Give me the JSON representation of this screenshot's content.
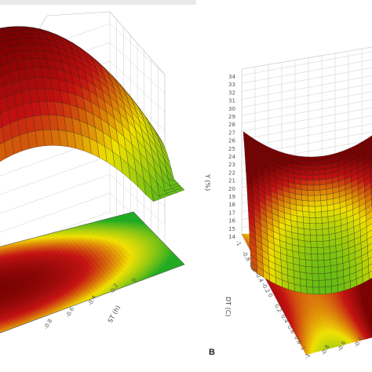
{
  "colors": {
    "low": "#1faa1f",
    "mid": "#f0e000",
    "high": "#c41010",
    "max": "#7a0000"
  },
  "chart_data": [
    {
      "type": "surface3d",
      "panel_label": "",
      "xlabel": "ST (h)",
      "ylabel": "",
      "zlabel": "",
      "x_ticks": [
        "-0.8",
        "-0.6",
        "-0.4",
        "-0.2",
        "0"
      ],
      "surface": "concave-down",
      "contour_projection": true
    },
    {
      "type": "surface3d",
      "panel_label": "B",
      "xlabel": "",
      "ylabel": "DT (C)",
      "zlabel": "Y (%)",
      "z_ticks": [
        "34",
        "33",
        "32",
        "31",
        "30",
        "29",
        "28",
        "27",
        "26",
        "25",
        "24",
        "23",
        "22",
        "21",
        "20",
        "19",
        "18",
        "17",
        "16",
        "15",
        "14"
      ],
      "y_ticks": [
        "-1",
        "-0.8",
        "-0.6",
        "-0.4",
        "-0.2",
        "0",
        "0.2",
        "0.4",
        "0.6",
        "0.8",
        "1"
      ],
      "x_ticks": [
        "-1",
        "-0.8",
        "-0.6",
        "-0.4"
      ],
      "surface": "saddle",
      "contour_projection": true
    }
  ]
}
